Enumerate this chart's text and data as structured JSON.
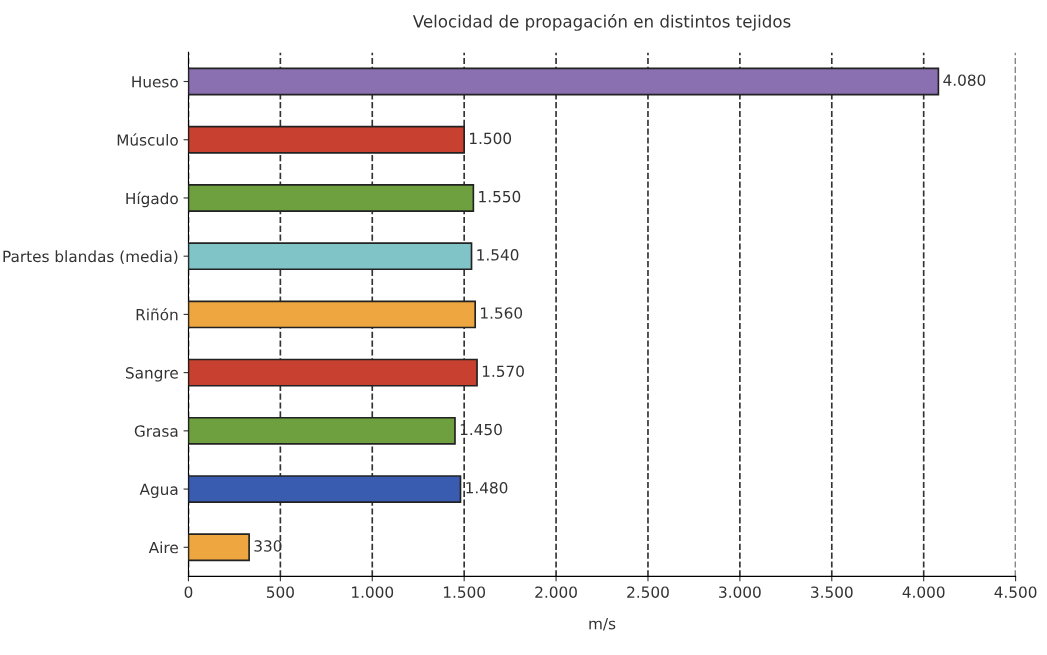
{
  "chart_data": {
    "type": "bar",
    "orientation": "horizontal",
    "title": "Velocidad de propagación en distintos tejidos",
    "xlabel": "m/s",
    "categories": [
      "Hueso",
      "Músculo",
      "Hígado",
      "Partes blandas (media)",
      "Riñón",
      "Sangre",
      "Grasa",
      "Agua",
      "Aire"
    ],
    "values": [
      4080,
      1500,
      1550,
      1540,
      1560,
      1570,
      1450,
      1480,
      330
    ],
    "value_labels": [
      "4.080",
      "1.500",
      "1.550",
      "1.540",
      "1.560",
      "1.570",
      "1.450",
      "1.480",
      "330"
    ],
    "colors": [
      "#8a70b0",
      "#c8402f",
      "#6fa040",
      "#80c4c8",
      "#eea640",
      "#c8402f",
      "#6fa040",
      "#3a5cb0",
      "#eea640"
    ],
    "xlim": [
      0,
      4500
    ],
    "xticks": [
      0,
      500,
      {
        "value": 1000,
        "label": "1.000"
      },
      {
        "value": 1500,
        "label": "1.500"
      },
      {
        "value": 2000,
        "label": "2.000"
      },
      {
        "value": 2500,
        "label": "2.500"
      },
      {
        "value": 3000,
        "label": "3.000"
      },
      {
        "value": 3500,
        "label": "3.500"
      },
      {
        "value": 4000,
        "label": "4.000"
      },
      {
        "value": 4500,
        "label": "4.500"
      }
    ],
    "grid": "x",
    "line_style": "dashed"
  }
}
